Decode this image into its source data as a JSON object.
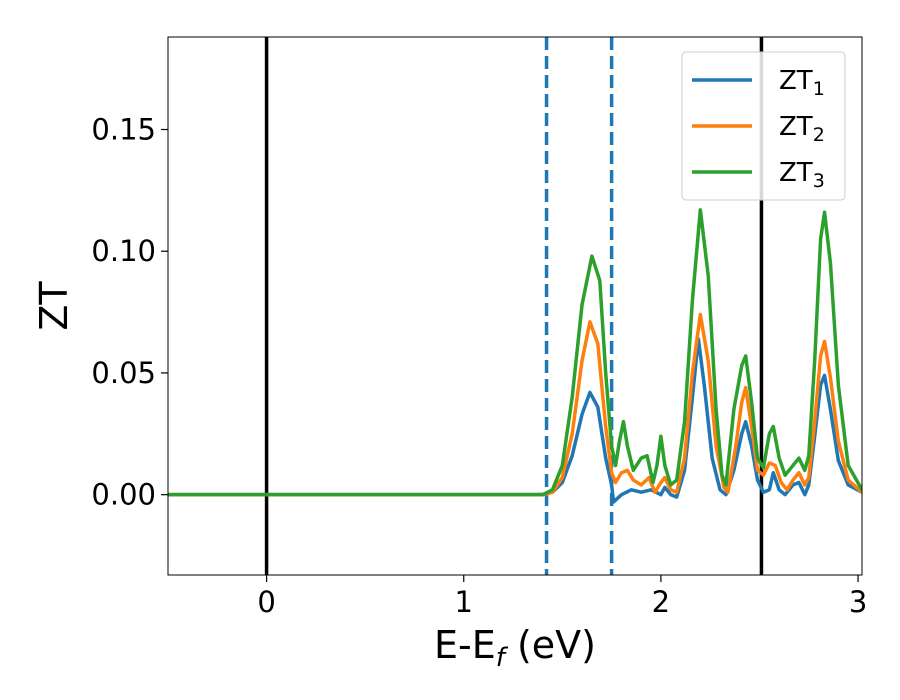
{
  "chart_data": {
    "type": "line",
    "xlabel": {
      "main": "E-E",
      "sub": "f",
      "unit": " (eV)"
    },
    "ylabel": "ZT",
    "xlim": [
      -0.5,
      3.02
    ],
    "ylim": [
      -0.033,
      0.188
    ],
    "xticks": [
      0,
      1,
      2,
      3
    ],
    "xtick_labels": [
      "0",
      "1",
      "2",
      "3"
    ],
    "yticks": [
      0.0,
      0.05,
      0.1,
      0.15
    ],
    "ytick_labels": [
      "0.00",
      "0.05",
      "0.10",
      "0.15"
    ],
    "grid": false,
    "legend_position": "top-right",
    "vertical_lines": [
      {
        "x": 0.0,
        "style": "solid",
        "color": "#000000"
      },
      {
        "x": 2.51,
        "style": "solid",
        "color": "#000000"
      },
      {
        "x": 1.42,
        "style": "dashed",
        "color": "#1f77b4"
      },
      {
        "x": 1.75,
        "style": "dashed",
        "color": "#1f77b4"
      }
    ],
    "series": [
      {
        "name": "ZT",
        "name_sub": "1",
        "color": "#1f77b4",
        "points": [
          [
            -0.5,
            0
          ],
          [
            1.4,
            0
          ],
          [
            1.45,
            0.001
          ],
          [
            1.5,
            0.005
          ],
          [
            1.55,
            0.016
          ],
          [
            1.6,
            0.033
          ],
          [
            1.64,
            0.042
          ],
          [
            1.68,
            0.036
          ],
          [
            1.72,
            0.015
          ],
          [
            1.75,
            0.004
          ],
          [
            1.76,
            -0.003
          ],
          [
            1.8,
            0
          ],
          [
            1.85,
            0.002
          ],
          [
            1.9,
            0.001
          ],
          [
            1.95,
            0.002
          ],
          [
            2.0,
            0
          ],
          [
            2.02,
            0.003
          ],
          [
            2.05,
            0
          ],
          [
            2.08,
            -0.001
          ],
          [
            2.12,
            0.01
          ],
          [
            2.16,
            0.04
          ],
          [
            2.19,
            0.064
          ],
          [
            2.22,
            0.045
          ],
          [
            2.26,
            0.015
          ],
          [
            2.3,
            0.002
          ],
          [
            2.33,
            0
          ],
          [
            2.37,
            0.01
          ],
          [
            2.41,
            0.025
          ],
          [
            2.43,
            0.03
          ],
          [
            2.46,
            0.02
          ],
          [
            2.49,
            0.006
          ],
          [
            2.52,
            0.001
          ],
          [
            2.55,
            0.002
          ],
          [
            2.57,
            0.009
          ],
          [
            2.6,
            0.002
          ],
          [
            2.63,
            0
          ],
          [
            2.67,
            0.004
          ],
          [
            2.7,
            0.005
          ],
          [
            2.73,
            0
          ],
          [
            2.75,
            0.004
          ],
          [
            2.78,
            0.024
          ],
          [
            2.81,
            0.045
          ],
          [
            2.83,
            0.049
          ],
          [
            2.86,
            0.035
          ],
          [
            2.9,
            0.014
          ],
          [
            2.95,
            0.004
          ],
          [
            3.02,
            0.001
          ]
        ]
      },
      {
        "name": "ZT",
        "name_sub": "2",
        "color": "#ff7f0e",
        "points": [
          [
            -0.5,
            0
          ],
          [
            1.4,
            0
          ],
          [
            1.45,
            0.001
          ],
          [
            1.5,
            0.007
          ],
          [
            1.55,
            0.025
          ],
          [
            1.6,
            0.055
          ],
          [
            1.64,
            0.071
          ],
          [
            1.68,
            0.062
          ],
          [
            1.72,
            0.028
          ],
          [
            1.75,
            0.009
          ],
          [
            1.77,
            0.005
          ],
          [
            1.8,
            0.009
          ],
          [
            1.83,
            0.01
          ],
          [
            1.86,
            0.006
          ],
          [
            1.9,
            0.004
          ],
          [
            1.94,
            0.007
          ],
          [
            1.97,
            0.001
          ],
          [
            2.0,
            0.005
          ],
          [
            2.02,
            0.007
          ],
          [
            2.05,
            0.002
          ],
          [
            2.08,
            0.001
          ],
          [
            2.12,
            0.015
          ],
          [
            2.16,
            0.05
          ],
          [
            2.2,
            0.074
          ],
          [
            2.24,
            0.055
          ],
          [
            2.28,
            0.02
          ],
          [
            2.32,
            0.003
          ],
          [
            2.34,
            0.001
          ],
          [
            2.38,
            0.02
          ],
          [
            2.41,
            0.038
          ],
          [
            2.43,
            0.044
          ],
          [
            2.46,
            0.028
          ],
          [
            2.49,
            0.01
          ],
          [
            2.52,
            0.008
          ],
          [
            2.55,
            0.013
          ],
          [
            2.58,
            0.012
          ],
          [
            2.61,
            0.005
          ],
          [
            2.64,
            0.002
          ],
          [
            2.67,
            0.006
          ],
          [
            2.7,
            0.009
          ],
          [
            2.73,
            0.004
          ],
          [
            2.75,
            0.007
          ],
          [
            2.78,
            0.03
          ],
          [
            2.81,
            0.057
          ],
          [
            2.83,
            0.063
          ],
          [
            2.86,
            0.048
          ],
          [
            2.9,
            0.022
          ],
          [
            2.95,
            0.006
          ],
          [
            3.02,
            0.001
          ]
        ]
      },
      {
        "name": "ZT",
        "name_sub": "3",
        "color": "#2ca02c",
        "points": [
          [
            -0.5,
            0
          ],
          [
            1.4,
            0
          ],
          [
            1.45,
            0.002
          ],
          [
            1.5,
            0.012
          ],
          [
            1.55,
            0.04
          ],
          [
            1.6,
            0.078
          ],
          [
            1.65,
            0.098
          ],
          [
            1.69,
            0.088
          ],
          [
            1.72,
            0.05
          ],
          [
            1.75,
            0.02
          ],
          [
            1.77,
            0.012
          ],
          [
            1.79,
            0.022
          ],
          [
            1.81,
            0.03
          ],
          [
            1.83,
            0.02
          ],
          [
            1.86,
            0.01
          ],
          [
            1.9,
            0.015
          ],
          [
            1.93,
            0.016
          ],
          [
            1.96,
            0.005
          ],
          [
            1.98,
            0.012
          ],
          [
            2.0,
            0.024
          ],
          [
            2.02,
            0.012
          ],
          [
            2.05,
            0.004
          ],
          [
            2.08,
            0.006
          ],
          [
            2.12,
            0.03
          ],
          [
            2.16,
            0.08
          ],
          [
            2.2,
            0.117
          ],
          [
            2.24,
            0.09
          ],
          [
            2.28,
            0.035
          ],
          [
            2.31,
            0.008
          ],
          [
            2.33,
            0.004
          ],
          [
            2.37,
            0.035
          ],
          [
            2.41,
            0.053
          ],
          [
            2.43,
            0.057
          ],
          [
            2.46,
            0.038
          ],
          [
            2.49,
            0.015
          ],
          [
            2.52,
            0.011
          ],
          [
            2.55,
            0.025
          ],
          [
            2.57,
            0.028
          ],
          [
            2.6,
            0.015
          ],
          [
            2.63,
            0.008
          ],
          [
            2.67,
            0.012
          ],
          [
            2.7,
            0.015
          ],
          [
            2.73,
            0.01
          ],
          [
            2.75,
            0.016
          ],
          [
            2.78,
            0.055
          ],
          [
            2.81,
            0.105
          ],
          [
            2.83,
            0.116
          ],
          [
            2.86,
            0.095
          ],
          [
            2.9,
            0.045
          ],
          [
            2.95,
            0.012
          ],
          [
            3.02,
            0.002
          ]
        ]
      }
    ]
  }
}
